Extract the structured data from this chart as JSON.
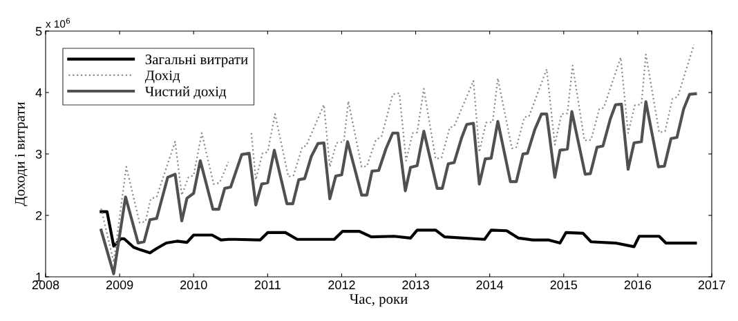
{
  "chart_data": {
    "type": "line",
    "xlabel": "Час, роки",
    "ylabel": "Доходи і витрати",
    "annotations": [
      "x 10$^{6}$"
    ],
    "xlim": [
      2008,
      2017
    ],
    "xticks": [
      2008,
      2009,
      2010,
      2011,
      2012,
      2013,
      2014,
      2015,
      2016,
      2017
    ],
    "ylim": [
      1,
      5
    ],
    "yticks": [
      1,
      2,
      3,
      4,
      5
    ],
    "legend": "top left",
    "series": [
      {
        "name": "Загальні витрати",
        "color": "#000000",
        "line_style": "solid",
        "x": [
          2008.75,
          2008.83,
          2008.92,
          2009.02,
          2009.06,
          2009.19,
          2009.28,
          2009.41,
          2009.5,
          2009.63,
          2009.78,
          2009.91,
          2010.0,
          2010.25,
          2010.37,
          2010.47,
          2010.56,
          2010.9,
          2011.0,
          2011.24,
          2011.4,
          2011.9,
          2012.01,
          2012.24,
          2012.4,
          2012.71,
          2012.93,
          2013.02,
          2013.27,
          2013.39,
          2013.93,
          2014.02,
          2014.23,
          2014.39,
          2014.58,
          2014.79,
          2014.95,
          2015.03,
          2015.26,
          2015.37,
          2015.7,
          2015.95,
          2016.02,
          2016.29,
          2016.38,
          2016.6,
          2016.78
        ],
        "values": [
          2.06,
          2.06,
          1.5,
          1.62,
          1.62,
          1.48,
          1.44,
          1.39,
          1.46,
          1.55,
          1.58,
          1.56,
          1.68,
          1.68,
          1.6,
          1.61,
          1.61,
          1.6,
          1.72,
          1.72,
          1.61,
          1.61,
          1.74,
          1.74,
          1.65,
          1.66,
          1.63,
          1.76,
          1.76,
          1.65,
          1.61,
          1.76,
          1.75,
          1.63,
          1.6,
          1.6,
          1.55,
          1.72,
          1.71,
          1.57,
          1.55,
          1.49,
          1.66,
          1.66,
          1.55,
          1.55,
          1.55
        ]
      },
      {
        "name": "Дохід",
        "color": "#8c8c8c",
        "line_style": "dotted",
        "x": [
          2008.75,
          2008.92,
          2009.09,
          2009.27,
          2009.35,
          2009.42,
          2009.5,
          2009.75,
          2009.84,
          2009.93,
          2010.0,
          2010.11,
          2010.27,
          2010.35,
          2010.47,
          2010.65,
          2010.78,
          2010.84,
          2010.93,
          2011.0,
          2011.1,
          2011.28,
          2011.35,
          2011.47,
          2011.52,
          2011.76,
          2011.84,
          2011.93,
          2012.03,
          2012.09,
          2012.27,
          2012.34,
          2012.46,
          2012.54,
          2012.69,
          2012.78,
          2012.87,
          2012.96,
          2013.02,
          2013.11,
          2013.27,
          2013.35,
          2013.46,
          2013.52,
          2013.78,
          2013.86,
          2013.95,
          2014.04,
          2014.11,
          2014.3,
          2014.36,
          2014.47,
          2014.53,
          2014.77,
          2014.88,
          2014.97,
          2015.05,
          2015.12,
          2015.28,
          2015.37,
          2015.48,
          2015.54,
          2015.77,
          2015.87,
          2015.96,
          2016.05,
          2016.11,
          2016.29,
          2016.37,
          2016.47,
          2016.54,
          2016.76
        ],
        "values": [
          2.11,
          1.24,
          2.79,
          1.88,
          1.9,
          2.27,
          2.3,
          3.2,
          2.33,
          2.62,
          2.65,
          3.34,
          2.51,
          2.53,
          2.87,
          null,
          3.34,
          2.58,
          3.01,
          3.03,
          3.65,
          2.63,
          2.65,
          3.12,
          3.13,
          3.8,
          2.79,
          3.18,
          3.2,
          3.86,
          2.79,
          2.8,
          3.22,
          3.29,
          3.97,
          3.99,
          2.89,
          3.34,
          3.35,
          4.06,
          2.92,
          2.94,
          3.43,
          3.45,
          4.19,
          3.03,
          3.51,
          3.52,
          4.23,
          3.09,
          3.11,
          3.6,
          3.61,
          4.38,
          3.15,
          3.65,
          3.66,
          4.44,
          3.22,
          3.23,
          3.73,
          3.75,
          4.57,
          3.34,
          3.79,
          3.81,
          4.62,
          3.35,
          3.37,
          3.9,
          3.93,
          4.78
        ]
      },
      {
        "name": "Чистий дохід",
        "color": "#505050",
        "line_style": "solid",
        "x": [
          2008.75,
          2008.92,
          2009.08,
          2009.25,
          2009.33,
          2009.41,
          2009.5,
          2009.65,
          2009.75,
          2009.84,
          2009.91,
          2010.0,
          2010.09,
          2010.26,
          2010.34,
          2010.42,
          2010.5,
          2010.65,
          2010.75,
          2010.84,
          2010.92,
          2011.0,
          2011.09,
          2011.26,
          2011.34,
          2011.42,
          2011.5,
          2011.59,
          2011.68,
          2011.76,
          2011.84,
          2011.92,
          2012.0,
          2012.08,
          2012.27,
          2012.34,
          2012.41,
          2012.5,
          2012.6,
          2012.69,
          2012.76,
          2012.86,
          2012.93,
          2013.02,
          2013.11,
          2013.29,
          2013.36,
          2013.44,
          2013.52,
          2013.62,
          2013.69,
          2013.78,
          2013.86,
          2013.94,
          2014.02,
          2014.11,
          2014.28,
          2014.36,
          2014.45,
          2014.51,
          2014.61,
          2014.7,
          2014.77,
          2014.88,
          2014.95,
          2015.05,
          2015.11,
          2015.29,
          2015.36,
          2015.45,
          2015.53,
          2015.63,
          2015.7,
          2015.78,
          2015.87,
          2015.95,
          2016.05,
          2016.11,
          2016.28,
          2016.36,
          2016.45,
          2016.53,
          2016.62,
          2016.7,
          2016.78
        ],
        "values": [
          1.76,
          1.05,
          2.3,
          1.55,
          1.57,
          1.93,
          1.95,
          2.62,
          2.67,
          1.91,
          2.28,
          2.36,
          2.89,
          2.1,
          2.1,
          2.44,
          2.46,
          2.99,
          3.01,
          2.17,
          2.51,
          2.53,
          3.06,
          2.19,
          2.19,
          2.58,
          2.6,
          2.96,
          3.17,
          3.18,
          2.27,
          2.64,
          2.66,
          3.2,
          2.33,
          2.33,
          2.72,
          2.73,
          3.09,
          3.34,
          3.34,
          2.4,
          2.78,
          2.81,
          3.37,
          2.44,
          2.44,
          2.84,
          2.86,
          3.26,
          3.48,
          3.5,
          2.51,
          2.92,
          2.93,
          3.53,
          2.55,
          2.55,
          3.0,
          3.01,
          3.4,
          3.65,
          3.65,
          2.62,
          3.06,
          3.08,
          3.69,
          2.67,
          2.68,
          3.11,
          3.13,
          3.57,
          3.8,
          3.81,
          2.75,
          3.18,
          3.2,
          3.85,
          2.79,
          2.8,
          3.25,
          3.27,
          3.73,
          3.97,
          3.98
        ]
      }
    ]
  }
}
